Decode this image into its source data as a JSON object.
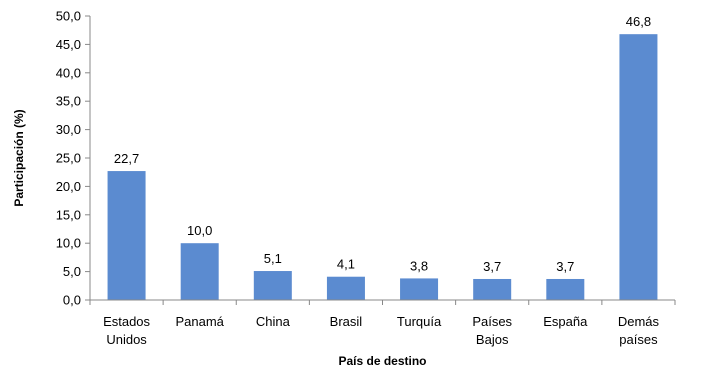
{
  "chart_data": {
    "type": "bar",
    "categories": [
      [
        "Estados",
        "Unidos"
      ],
      [
        "Panamá"
      ],
      [
        "China"
      ],
      [
        "Brasil"
      ],
      [
        "Turquía"
      ],
      [
        "Países",
        "Bajos"
      ],
      [
        "España"
      ],
      [
        "Demás",
        "países"
      ]
    ],
    "values": [
      22.7,
      10.0,
      5.1,
      4.1,
      3.8,
      3.7,
      3.7,
      46.8
    ],
    "value_labels": [
      "22,7",
      "10,0",
      "5,1",
      "4,1",
      "3,8",
      "3,7",
      "3,7",
      "46,8"
    ],
    "xlabel": "País de destino",
    "ylabel": "Participación (%)",
    "ylim": [
      0,
      50
    ],
    "yticks": [
      "0,0",
      "5,0",
      "10,0",
      "15,0",
      "20,0",
      "25,0",
      "30,0",
      "35,0",
      "40,0",
      "45,0",
      "50,0"
    ],
    "grid": false,
    "legend": "none",
    "bar_color": "#5B8BD0",
    "axis_color": "#888888"
  }
}
